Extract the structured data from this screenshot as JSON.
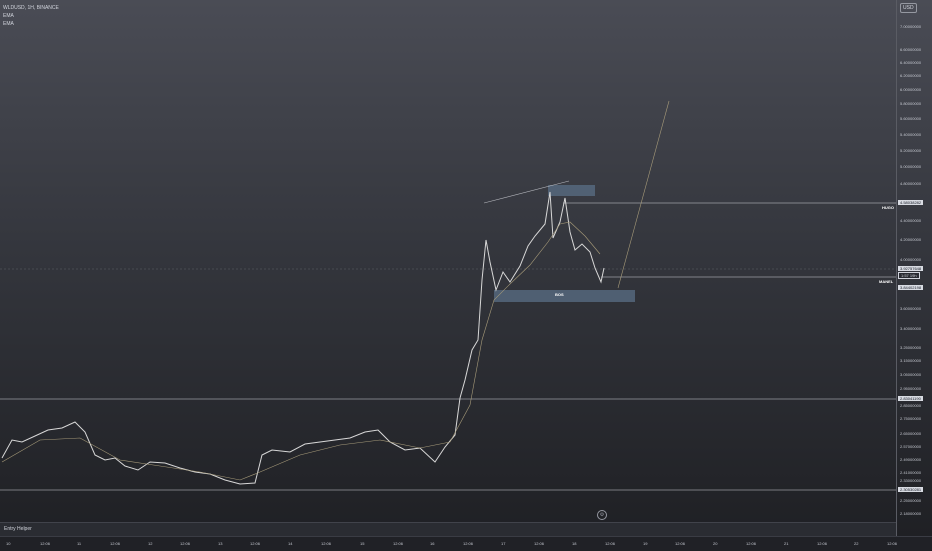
{
  "legend": {
    "symbol": "WLDUSD, 1H, BINANCE",
    "ind1": "EMA",
    "ind2": "EMA"
  },
  "price_scale": {
    "currency": "USD",
    "ticks": [
      "7.00000000",
      "6.60000000",
      "6.40000000",
      "6.20000000",
      "6.00000000",
      "5.80000000",
      "5.60000000",
      "5.40000000",
      "5.20000000",
      "5.00000000",
      "4.80000000",
      "4.60000000",
      "4.40000000",
      "4.20000000",
      "4.00000000",
      "3.80000000",
      "3.60000000",
      "3.40000000",
      "3.25000000",
      "3.15000000",
      "3.05000000",
      "2.95000000",
      "2.85000000",
      "2.75000000",
      "2.65000000",
      "2.57000000",
      "2.49000000",
      "2.41000000",
      "2.33000000",
      "2.25000000",
      "2.18000000"
    ],
    "tags": {
      "high": "4.58038282",
      "cur1": "3.92757648",
      "cur2": "1:57 19h",
      "cur3": "3.84402198",
      "low1": "2.83041190",
      "low2": "2.30530281"
    }
  },
  "lines": {
    "hugo": "HUGO",
    "manel": "MANEL"
  },
  "zones": {
    "bos": "BOS"
  },
  "time_axis": [
    "10",
    "12:06",
    "11",
    "12:06",
    "12",
    "12:06",
    "13",
    "12:06",
    "14",
    "12:06",
    "15",
    "12:06",
    "16",
    "12:06",
    "17",
    "12:06",
    "18",
    "12:06",
    "19",
    "12:06",
    "20",
    "12:06",
    "21",
    "12:06",
    "22",
    "12:06"
  ],
  "panel": {
    "label": "Entry Helper"
  },
  "colors": {
    "up": "#d8d8d8",
    "down": "#8a8c94",
    "ema": "#a79b7a"
  }
}
